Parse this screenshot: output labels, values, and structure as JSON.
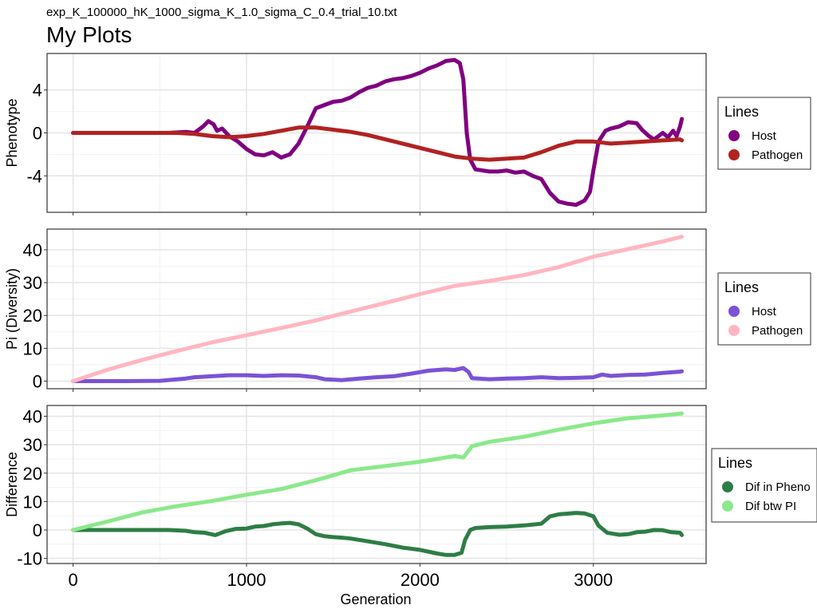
{
  "figure": {
    "filename": "exp_K_100000_hK_1000_sigma_K_1.0_sigma_C_0.4_trial_10.txt",
    "title": "My Plots",
    "xlabel": "Generation",
    "x_ticks": [
      0,
      1000,
      2000,
      3000
    ],
    "xlim": [
      -150,
      3650
    ]
  },
  "chart_data": [
    {
      "type": "line",
      "title": "",
      "xlabel": "",
      "ylabel": "Phenotype",
      "ylim": [
        -7.4,
        7.4
      ],
      "y_ticks": [
        4,
        0,
        -4
      ],
      "grid": true,
      "legend": {
        "title": "Lines",
        "placement": "right"
      },
      "series": [
        {
          "name": "Host",
          "color": "#800080",
          "points": [
            [
              0,
              0
            ],
            [
              550,
              0
            ],
            [
              650,
              0.1
            ],
            [
              700,
              0
            ],
            [
              750,
              0.6
            ],
            [
              780,
              1.1
            ],
            [
              810,
              0.8
            ],
            [
              830,
              0.2
            ],
            [
              860,
              0.4
            ],
            [
              900,
              -0.3
            ],
            [
              950,
              -0.8
            ],
            [
              1000,
              -1.5
            ],
            [
              1050,
              -2.0
            ],
            [
              1100,
              -2.1
            ],
            [
              1150,
              -1.8
            ],
            [
              1200,
              -2.3
            ],
            [
              1250,
              -2.0
            ],
            [
              1300,
              -1.0
            ],
            [
              1350,
              0.6
            ],
            [
              1400,
              2.3
            ],
            [
              1450,
              2.6
            ],
            [
              1500,
              2.9
            ],
            [
              1550,
              3.0
            ],
            [
              1600,
              3.3
            ],
            [
              1650,
              3.8
            ],
            [
              1700,
              4.2
            ],
            [
              1750,
              4.4
            ],
            [
              1800,
              4.8
            ],
            [
              1850,
              5.0
            ],
            [
              1900,
              5.1
            ],
            [
              1950,
              5.3
            ],
            [
              2000,
              5.6
            ],
            [
              2050,
              6.0
            ],
            [
              2100,
              6.3
            ],
            [
              2150,
              6.7
            ],
            [
              2200,
              6.8
            ],
            [
              2230,
              6.5
            ],
            [
              2250,
              5.0
            ],
            [
              2270,
              0.0
            ],
            [
              2290,
              -2.5
            ],
            [
              2320,
              -3.4
            ],
            [
              2400,
              -3.6
            ],
            [
              2450,
              -3.6
            ],
            [
              2500,
              -3.5
            ],
            [
              2550,
              -3.7
            ],
            [
              2600,
              -3.6
            ],
            [
              2650,
              -4.0
            ],
            [
              2700,
              -4.3
            ],
            [
              2750,
              -5.6
            ],
            [
              2800,
              -6.4
            ],
            [
              2850,
              -6.6
            ],
            [
              2900,
              -6.7
            ],
            [
              2950,
              -6.3
            ],
            [
              2980,
              -5.5
            ],
            [
              3000,
              -3.5
            ],
            [
              3030,
              -0.8
            ],
            [
              3070,
              0.2
            ],
            [
              3100,
              0.4
            ],
            [
              3150,
              0.6
            ],
            [
              3200,
              1.0
            ],
            [
              3250,
              0.9
            ],
            [
              3280,
              0.3
            ],
            [
              3320,
              -0.3
            ],
            [
              3350,
              -0.6
            ],
            [
              3400,
              0.0
            ],
            [
              3430,
              -0.4
            ],
            [
              3460,
              0.2
            ],
            [
              3480,
              -0.3
            ],
            [
              3500,
              0.6
            ],
            [
              3510,
              1.3
            ]
          ]
        },
        {
          "name": "Pathogen",
          "color": "#B22222",
          "points": [
            [
              0,
              0
            ],
            [
              600,
              0
            ],
            [
              700,
              -0.1
            ],
            [
              800,
              -0.3
            ],
            [
              900,
              -0.4
            ],
            [
              1000,
              -0.3
            ],
            [
              1100,
              -0.1
            ],
            [
              1200,
              0.2
            ],
            [
              1300,
              0.5
            ],
            [
              1400,
              0.5
            ],
            [
              1500,
              0.3
            ],
            [
              1600,
              0.1
            ],
            [
              1700,
              -0.2
            ],
            [
              1800,
              -0.6
            ],
            [
              1900,
              -1.0
            ],
            [
              2000,
              -1.4
            ],
            [
              2100,
              -1.8
            ],
            [
              2200,
              -2.2
            ],
            [
              2300,
              -2.4
            ],
            [
              2400,
              -2.5
            ],
            [
              2500,
              -2.4
            ],
            [
              2600,
              -2.3
            ],
            [
              2700,
              -1.8
            ],
            [
              2800,
              -1.2
            ],
            [
              2900,
              -0.8
            ],
            [
              3000,
              -0.8
            ],
            [
              3100,
              -1.0
            ],
            [
              3200,
              -0.9
            ],
            [
              3300,
              -0.8
            ],
            [
              3400,
              -0.7
            ],
            [
              3500,
              -0.6
            ],
            [
              3510,
              -0.7
            ]
          ]
        }
      ]
    },
    {
      "type": "line",
      "title": "",
      "xlabel": "",
      "ylabel": "Pi (Diversity)",
      "ylim": [
        -2.3,
        46.3
      ],
      "y_ticks": [
        40,
        30,
        20,
        10,
        0
      ],
      "grid": true,
      "legend": {
        "title": "Lines",
        "placement": "right"
      },
      "series": [
        {
          "name": "Host",
          "color": "#7B52D6",
          "points": [
            [
              0,
              0
            ],
            [
              300,
              0
            ],
            [
              500,
              0.1
            ],
            [
              650,
              0.8
            ],
            [
              700,
              1.2
            ],
            [
              800,
              1.5
            ],
            [
              900,
              1.8
            ],
            [
              1000,
              1.8
            ],
            [
              1100,
              1.6
            ],
            [
              1200,
              1.8
            ],
            [
              1300,
              1.7
            ],
            [
              1400,
              1.2
            ],
            [
              1450,
              0.6
            ],
            [
              1550,
              0.3
            ],
            [
              1650,
              0.8
            ],
            [
              1750,
              1.2
            ],
            [
              1850,
              1.5
            ],
            [
              1950,
              2.3
            ],
            [
              2050,
              3.2
            ],
            [
              2150,
              3.6
            ],
            [
              2200,
              3.4
            ],
            [
              2250,
              4.0
            ],
            [
              2280,
              2.8
            ],
            [
              2300,
              0.9
            ],
            [
              2400,
              0.6
            ],
            [
              2500,
              0.8
            ],
            [
              2600,
              0.9
            ],
            [
              2700,
              1.2
            ],
            [
              2800,
              0.9
            ],
            [
              2900,
              1.0
            ],
            [
              3000,
              1.2
            ],
            [
              3050,
              2.0
            ],
            [
              3100,
              1.6
            ],
            [
              3200,
              1.9
            ],
            [
              3300,
              2.0
            ],
            [
              3400,
              2.5
            ],
            [
              3500,
              2.9
            ],
            [
              3510,
              3.0
            ]
          ]
        },
        {
          "name": "Pathogen",
          "color": "#FFB6C1",
          "points": [
            [
              0,
              0
            ],
            [
              200,
              3.5
            ],
            [
              400,
              6.5
            ],
            [
              600,
              9.2
            ],
            [
              800,
              11.8
            ],
            [
              1000,
              14.0
            ],
            [
              1200,
              16.2
            ],
            [
              1400,
              18.5
            ],
            [
              1600,
              21.2
            ],
            [
              1800,
              23.8
            ],
            [
              2000,
              26.5
            ],
            [
              2200,
              29.0
            ],
            [
              2400,
              30.5
            ],
            [
              2600,
              32.3
            ],
            [
              2800,
              34.7
            ],
            [
              3000,
              37.9
            ],
            [
              3200,
              40.2
            ],
            [
              3400,
              42.5
            ],
            [
              3510,
              44.0
            ]
          ]
        }
      ]
    },
    {
      "type": "line",
      "title": "",
      "xlabel": "Generation",
      "ylabel": "Difference",
      "ylim": [
        -11.8,
        43.8
      ],
      "y_ticks": [
        40,
        30,
        20,
        10,
        0,
        -10
      ],
      "grid": true,
      "legend": {
        "title": "Lines",
        "placement": "right"
      },
      "series": [
        {
          "name": "Dif in Pheno",
          "color": "#2E7D46",
          "points": [
            [
              0,
              0
            ],
            [
              550,
              0
            ],
            [
              650,
              -0.3
            ],
            [
              700,
              -0.8
            ],
            [
              760,
              -1.0
            ],
            [
              820,
              -1.8
            ],
            [
              880,
              -0.4
            ],
            [
              940,
              0.4
            ],
            [
              1000,
              0.5
            ],
            [
              1050,
              1.2
            ],
            [
              1100,
              1.4
            ],
            [
              1150,
              2.0
            ],
            [
              1200,
              2.3
            ],
            [
              1250,
              2.5
            ],
            [
              1300,
              2.0
            ],
            [
              1350,
              0.5
            ],
            [
              1400,
              -1.5
            ],
            [
              1450,
              -2.2
            ],
            [
              1500,
              -2.5
            ],
            [
              1550,
              -2.7
            ],
            [
              1600,
              -3.0
            ],
            [
              1700,
              -4.0
            ],
            [
              1800,
              -5.0
            ],
            [
              1900,
              -6.2
            ],
            [
              2000,
              -7.0
            ],
            [
              2100,
              -8.3
            ],
            [
              2150,
              -8.8
            ],
            [
              2200,
              -8.8
            ],
            [
              2240,
              -8.0
            ],
            [
              2260,
              -3.5
            ],
            [
              2290,
              0
            ],
            [
              2320,
              0.7
            ],
            [
              2400,
              1.0
            ],
            [
              2500,
              1.2
            ],
            [
              2600,
              1.6
            ],
            [
              2700,
              2.2
            ],
            [
              2750,
              4.8
            ],
            [
              2800,
              5.5
            ],
            [
              2900,
              6.0
            ],
            [
              2950,
              5.8
            ],
            [
              3000,
              4.8
            ],
            [
              3030,
              1.5
            ],
            [
              3080,
              -1.0
            ],
            [
              3150,
              -1.7
            ],
            [
              3200,
              -1.5
            ],
            [
              3250,
              -0.8
            ],
            [
              3300,
              -0.6
            ],
            [
              3350,
              0.0
            ],
            [
              3400,
              -0.1
            ],
            [
              3450,
              -0.8
            ],
            [
              3500,
              -1.0
            ],
            [
              3510,
              -1.8
            ]
          ]
        },
        {
          "name": "Dif btw PI",
          "color": "#8BE98B",
          "points": [
            [
              0,
              0
            ],
            [
              200,
              3.0
            ],
            [
              400,
              6.2
            ],
            [
              600,
              8.4
            ],
            [
              800,
              10.2
            ],
            [
              1000,
              12.4
            ],
            [
              1200,
              14.4
            ],
            [
              1400,
              17.5
            ],
            [
              1600,
              21.0
            ],
            [
              1800,
              22.5
            ],
            [
              2000,
              24.0
            ],
            [
              2200,
              26.0
            ],
            [
              2250,
              25.5
            ],
            [
              2300,
              29.5
            ],
            [
              2400,
              31.0
            ],
            [
              2600,
              32.8
            ],
            [
              2800,
              35.3
            ],
            [
              3000,
              37.5
            ],
            [
              3200,
              39.3
            ],
            [
              3400,
              40.3
            ],
            [
              3510,
              41.0
            ]
          ]
        }
      ]
    }
  ]
}
